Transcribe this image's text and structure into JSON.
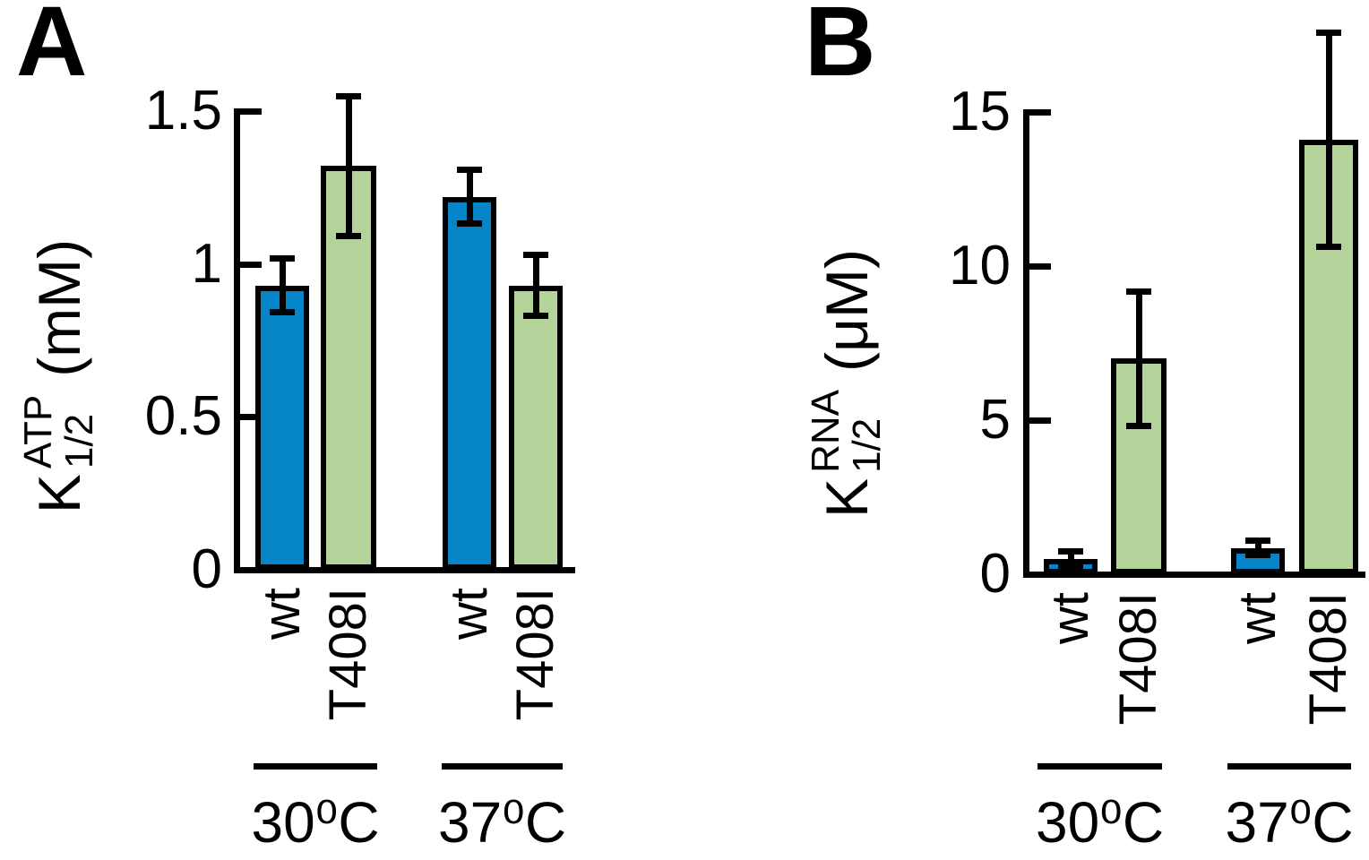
{
  "figure": {
    "background": "#ffffff",
    "axis_color": "#000000",
    "bar_colors": {
      "wt": "#0584c7",
      "T408I": "#b4d39b"
    }
  },
  "chart_data": [
    {
      "type": "bar",
      "panel_label": "A",
      "ylabel": {
        "symbol": "K",
        "sup": "ATP",
        "sub": "1/2",
        "unit": "(mM)"
      },
      "categories": [
        "wt",
        "T408I",
        "wt",
        "T408I"
      ],
      "group_labels": [
        "30⁰C",
        "37⁰C"
      ],
      "values": [
        0.93,
        1.32,
        1.22,
        0.93
      ],
      "errors": [
        0.09,
        0.23,
        0.09,
        0.1
      ],
      "series_colors": [
        "#0584c7",
        "#b4d39b",
        "#0584c7",
        "#b4d39b"
      ],
      "ylim": [
        0,
        1.5
      ],
      "yticks": [
        {
          "v": 1.5,
          "t": "1.5"
        },
        {
          "v": 1.0,
          "t": "1"
        },
        {
          "v": 0.5,
          "t": "0.5"
        },
        {
          "v": 0,
          "t": "0"
        }
      ],
      "legend": "none",
      "grid": false
    },
    {
      "type": "bar",
      "panel_label": "B",
      "ylabel": {
        "symbol": "K",
        "sup": "RNA",
        "sub": "1/2",
        "unit": "(μM)"
      },
      "categories": [
        "wt",
        "T408I",
        "wt",
        "T408I"
      ],
      "group_labels": [
        "30⁰C",
        "37⁰C"
      ],
      "values": [
        0.5,
        7.0,
        0.85,
        14.1
      ],
      "errors": [
        0.25,
        2.2,
        0.25,
        3.5
      ],
      "series_colors": [
        "#0584c7",
        "#b4d39b",
        "#0584c7",
        "#b4d39b"
      ],
      "ylim": [
        0,
        15
      ],
      "yticks": [
        {
          "v": 15,
          "t": "15"
        },
        {
          "v": 10,
          "t": "10"
        },
        {
          "v": 5,
          "t": "5"
        },
        {
          "v": 0,
          "t": "0"
        }
      ],
      "legend": "none",
      "grid": false
    }
  ]
}
